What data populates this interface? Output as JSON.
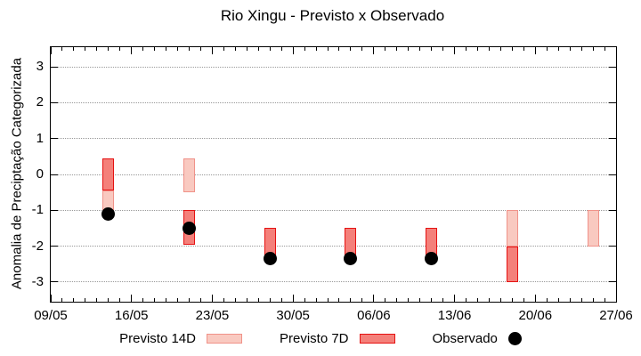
{
  "chart_data": {
    "type": "range-bar+scatter",
    "title": "Rio Xingu - Previsto x Observado",
    "ylabel": "Anomalia de Preciptação Categorizada",
    "xlabel": "",
    "ylim": [
      -3.55,
      3.55
    ],
    "y_ticks": [
      3,
      2,
      1,
      0,
      -1,
      -2,
      -3
    ],
    "grid": "horizontal-dotted",
    "grid_color": "#999999",
    "axis_color": "#000000",
    "x_axis": {
      "total_days": 49,
      "minor_tick_every_days": 1,
      "major_ticks": [
        {
          "day": 0,
          "label": "09/05"
        },
        {
          "day": 7,
          "label": "16/05"
        },
        {
          "day": 14,
          "label": "23/05"
        },
        {
          "day": 21,
          "label": "30/05"
        },
        {
          "day": 28,
          "label": "06/06"
        },
        {
          "day": 35,
          "label": "13/06"
        },
        {
          "day": 42,
          "label": "20/06"
        },
        {
          "day": 49,
          "label": "27/06"
        }
      ]
    },
    "series": [
      {
        "name": "Previsto 14D",
        "type": "range-bar",
        "fill": "#F9C9C0",
        "border": "#F09289",
        "points": [
          {
            "date": "14/05",
            "day": 5,
            "from": -0.45,
            "to": -1.0
          },
          {
            "date": "21/05",
            "day": 12,
            "from": 0.45,
            "to": -0.5
          },
          {
            "date": "18/06",
            "day": 40,
            "from": -1.0,
            "to": -2.0
          },
          {
            "date": "25/06",
            "day": 47,
            "from": -1.0,
            "to": -2.0
          }
        ]
      },
      {
        "name": "Previsto 7D",
        "type": "range-bar",
        "fill": "#F4807A",
        "border": "#E51212",
        "points": [
          {
            "date": "14/05",
            "day": 5,
            "from": 0.45,
            "to": -0.45
          },
          {
            "date": "21/05",
            "day": 12,
            "from": -1.0,
            "to": -1.95
          },
          {
            "date": "28/05",
            "day": 19,
            "from": -1.5,
            "to": -2.4
          },
          {
            "date": "04/06",
            "day": 26,
            "from": -1.5,
            "to": -2.4
          },
          {
            "date": "11/06",
            "day": 33,
            "from": -1.5,
            "to": -2.4
          },
          {
            "date": "18/06",
            "day": 40,
            "from": -2.0,
            "to": -3.0
          }
        ]
      },
      {
        "name": "Observado",
        "type": "scatter",
        "color": "#000000",
        "points": [
          {
            "date": "14/05",
            "day": 5,
            "value": -1.1
          },
          {
            "date": "21/05",
            "day": 12,
            "value": -1.5
          },
          {
            "date": "28/05",
            "day": 19,
            "value": -2.35
          },
          {
            "date": "04/06",
            "day": 26,
            "value": -2.35
          },
          {
            "date": "11/06",
            "day": 33,
            "value": -2.35
          }
        ]
      }
    ],
    "legend_position": "bottom-center"
  }
}
